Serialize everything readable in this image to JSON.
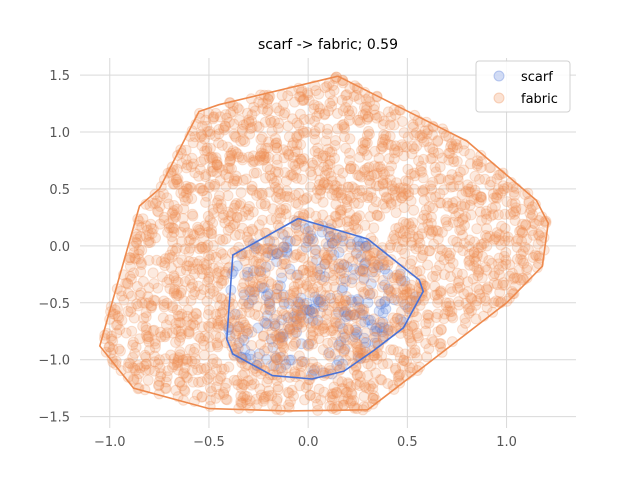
{
  "chart_data": {
    "type": "scatter",
    "title": "scarf -> fabric; 0.59",
    "xlabel": "",
    "ylabel": "",
    "xlim": [
      -1.15,
      1.35
    ],
    "ylim": [
      -1.6,
      1.65
    ],
    "xticks": [
      -1.0,
      -0.5,
      0.0,
      0.5,
      1.0
    ],
    "xtick_labels": [
      "−1.0",
      "−0.5",
      "0.0",
      "0.5",
      "1.0"
    ],
    "yticks": [
      -1.5,
      -1.0,
      -0.5,
      0.0,
      0.5,
      1.0,
      1.5
    ],
    "ytick_labels": [
      "−1.5",
      "−1.0",
      "−0.5",
      "0.0",
      "0.5",
      "1.0",
      "1.5"
    ],
    "grid": true,
    "legend_position": "top-right",
    "series": [
      {
        "name": "scarf",
        "color": "#4a72d6",
        "point_count": 250,
        "hull": [
          [
            -0.05,
            0.24
          ],
          [
            0.3,
            0.06
          ],
          [
            0.56,
            -0.3
          ],
          [
            0.58,
            -0.4
          ],
          [
            0.48,
            -0.72
          ],
          [
            0.33,
            -0.92
          ],
          [
            0.18,
            -1.1
          ],
          [
            0.02,
            -1.17
          ],
          [
            -0.18,
            -1.14
          ],
          [
            -0.38,
            -0.95
          ],
          [
            -0.41,
            -0.82
          ],
          [
            -0.38,
            -0.08
          ],
          [
            -0.05,
            0.24
          ]
        ]
      },
      {
        "name": "fabric",
        "color": "#ee8a4e",
        "point_count": 2400,
        "hull": [
          [
            0.15,
            1.49
          ],
          [
            0.8,
            0.92
          ],
          [
            1.15,
            0.4
          ],
          [
            1.21,
            0.2
          ],
          [
            1.18,
            -0.18
          ],
          [
            1.0,
            -0.5
          ],
          [
            0.3,
            -1.44
          ],
          [
            -0.1,
            -1.45
          ],
          [
            -0.5,
            -1.43
          ],
          [
            -0.88,
            -1.25
          ],
          [
            -1.05,
            -0.88
          ],
          [
            -0.85,
            0.35
          ],
          [
            -0.75,
            0.5
          ],
          [
            -0.55,
            1.18
          ],
          [
            -0.45,
            1.24
          ],
          [
            0.15,
            1.49
          ]
        ]
      }
    ]
  }
}
